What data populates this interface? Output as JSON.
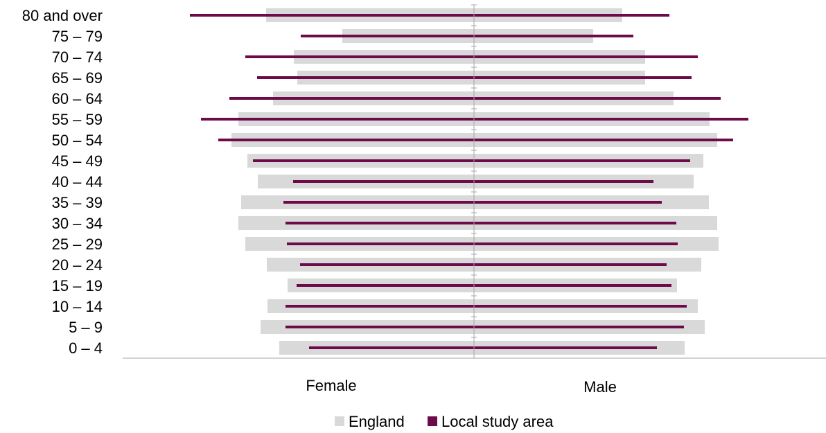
{
  "chart_data": {
    "type": "bar",
    "subtype": "population-pyramid",
    "categories": [
      "80 and over",
      "75 – 79",
      "70 – 74",
      "65 – 69",
      "60 – 64",
      "55 – 59",
      "50 – 54",
      "45 – 49",
      "40 – 44",
      "35 – 39",
      "30 – 34",
      "25 – 29",
      "20 – 24",
      "15 – 19",
      "10 – 14",
      "5 – 9",
      "0 – 4"
    ],
    "series": [
      {
        "name": "England",
        "color": "#d9d9d9",
        "female": [
          3.0,
          1.9,
          2.6,
          2.55,
          2.9,
          3.4,
          3.5,
          3.27,
          3.12,
          3.36,
          3.4,
          3.3,
          2.99,
          2.69,
          2.98,
          3.08,
          2.81
        ],
        "male": [
          2.14,
          1.72,
          2.47,
          2.47,
          2.88,
          3.4,
          3.51,
          3.31,
          3.17,
          3.39,
          3.51,
          3.53,
          3.28,
          2.93,
          3.23,
          3.33,
          3.04
        ]
      },
      {
        "name": "Local study area",
        "color": "#6d0a4a",
        "female": [
          4.1,
          2.5,
          3.3,
          3.13,
          3.53,
          3.94,
          3.69,
          3.19,
          2.61,
          2.75,
          2.72,
          2.7,
          2.51,
          2.56,
          2.72,
          2.72,
          2.38
        ],
        "male": [
          2.82,
          2.3,
          3.23,
          3.14,
          3.56,
          3.96,
          3.74,
          3.12,
          2.59,
          2.71,
          2.92,
          2.94,
          2.78,
          2.85,
          3.07,
          3.03,
          2.64
        ]
      }
    ],
    "group_labels": [
      "Female",
      "Male"
    ],
    "legend": {
      "position": "bottom-center",
      "entries": [
        "England",
        "Local study area"
      ]
    },
    "grid": false
  }
}
